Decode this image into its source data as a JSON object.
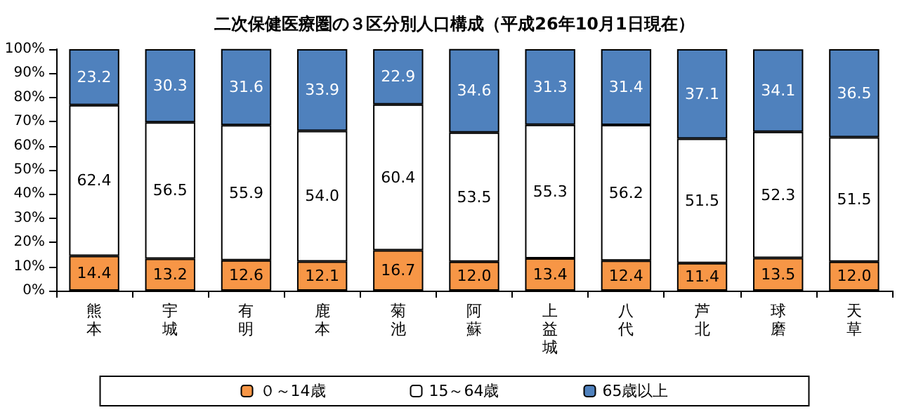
{
  "chart_data": {
    "type": "bar",
    "stacked": true,
    "title": "二次保健医療圏の３区分別人口構成（平成26年10月1日現在）",
    "categories": [
      "熊本",
      "宇城",
      "有明",
      "鹿本",
      "菊池",
      "阿蘇",
      "上益城",
      "八代",
      "芦北",
      "球磨",
      "天草"
    ],
    "series": [
      {
        "name": "０～14歳",
        "color": "#f79646",
        "values": [
          14.4,
          13.2,
          12.6,
          12.1,
          16.7,
          12.0,
          13.4,
          12.4,
          11.4,
          13.5,
          12.0
        ],
        "value_labels": [
          "14.4",
          "13.2",
          "12.6",
          "12.1",
          "16.7",
          "12.0",
          "13.4",
          "12.4",
          "11.4",
          "13.5",
          "12.0"
        ]
      },
      {
        "name": "15～64歳",
        "color": "#ffffff",
        "values": [
          62.4,
          56.5,
          55.9,
          54.0,
          60.4,
          53.5,
          55.3,
          56.2,
          51.5,
          52.3,
          51.5
        ],
        "value_labels": [
          "62.4",
          "56.5",
          "55.9",
          "54.0",
          "60.4",
          "53.5",
          "55.3",
          "56.2",
          "51.5",
          "52.3",
          "51.5"
        ]
      },
      {
        "name": "65歳以上",
        "color": "#4f81bd",
        "values": [
          23.2,
          30.3,
          31.6,
          33.9,
          22.9,
          34.6,
          31.3,
          31.4,
          37.1,
          34.1,
          36.5
        ],
        "value_labels": [
          "23.2",
          "30.3",
          "31.6",
          "33.9",
          "22.9",
          "34.6",
          "31.3",
          "31.4",
          "37.1",
          "34.1",
          "36.5"
        ]
      }
    ],
    "ylim": [
      0,
      100
    ],
    "yticks": [
      {
        "value": 0,
        "label": "0%"
      },
      {
        "value": 10,
        "label": "10%"
      },
      {
        "value": 20,
        "label": "20%"
      },
      {
        "value": 30,
        "label": "30%"
      },
      {
        "value": 40,
        "label": "40%"
      },
      {
        "value": 50,
        "label": "50%"
      },
      {
        "value": 60,
        "label": "60%"
      },
      {
        "value": 70,
        "label": "70%"
      },
      {
        "value": 80,
        "label": "80%"
      },
      {
        "value": 90,
        "label": "90%"
      },
      {
        "value": 100,
        "label": "100%"
      }
    ],
    "grid": false,
    "legend": "bottom"
  }
}
